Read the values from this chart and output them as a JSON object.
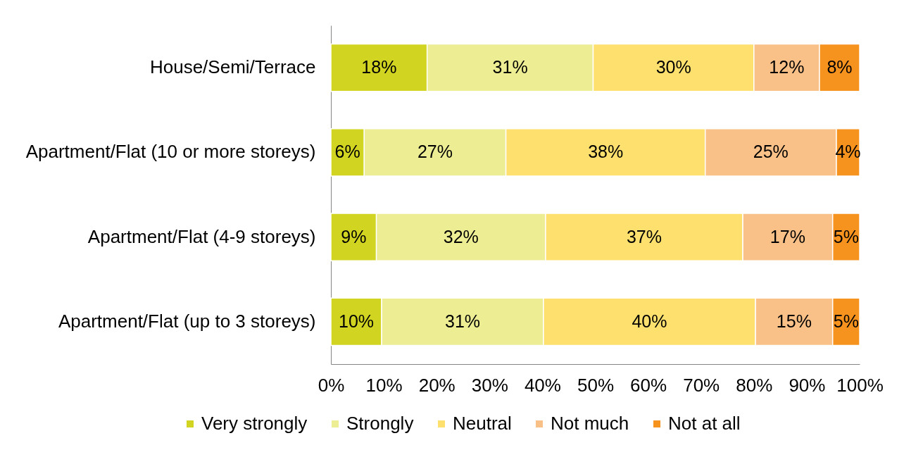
{
  "chart_data": {
    "type": "bar",
    "orientation": "horizontal",
    "stacked": true,
    "categories": [
      "House/Semi/Terrace",
      "Apartment/Flat (10 or more storeys)",
      "Apartment/Flat (4-9 storeys)",
      "Apartment/Flat (up to 3 storeys)"
    ],
    "series": [
      {
        "name": "Very strongly",
        "color": "#d1d420",
        "values": [
          18.2,
          6.3,
          8.6,
          9.6
        ],
        "value_labels": [
          "18%",
          "6%",
          "9%",
          "10%"
        ]
      },
      {
        "name": "Strongly",
        "color": "#eded94",
        "values": [
          31.4,
          26.8,
          32.0,
          30.6
        ],
        "value_labels": [
          "31%",
          "27%",
          "32%",
          "31%"
        ]
      },
      {
        "name": "Neutral",
        "color": "#fde06d",
        "values": [
          30.4,
          37.7,
          37.3,
          40.1
        ],
        "value_labels": [
          "30%",
          "38%",
          "37%",
          "40%"
        ]
      },
      {
        "name": "Not much",
        "color": "#f9c087",
        "values": [
          12.4,
          24.8,
          17.0,
          14.6
        ],
        "value_labels": [
          "12%",
          "25%",
          "17%",
          "15%"
        ]
      },
      {
        "name": "Not at all",
        "color": "#f6921e",
        "values": [
          7.6,
          4.4,
          5.1,
          5.1
        ],
        "value_labels": [
          "8%",
          "4%",
          "5%",
          "5%"
        ]
      }
    ],
    "xlim": [
      0,
      100
    ],
    "xticks": [
      {
        "value": 0,
        "label": "0%"
      },
      {
        "value": 10,
        "label": "10%"
      },
      {
        "value": 20,
        "label": "20%"
      },
      {
        "value": 30,
        "label": "30%"
      },
      {
        "value": 40,
        "label": "40%"
      },
      {
        "value": 50,
        "label": "50%"
      },
      {
        "value": 60,
        "label": "60%"
      },
      {
        "value": 70,
        "label": "70%"
      },
      {
        "value": 80,
        "label": "80%"
      },
      {
        "value": 90,
        "label": "90%"
      },
      {
        "value": 100,
        "label": "100%"
      }
    ],
    "legend": "bottom",
    "grid": false
  }
}
